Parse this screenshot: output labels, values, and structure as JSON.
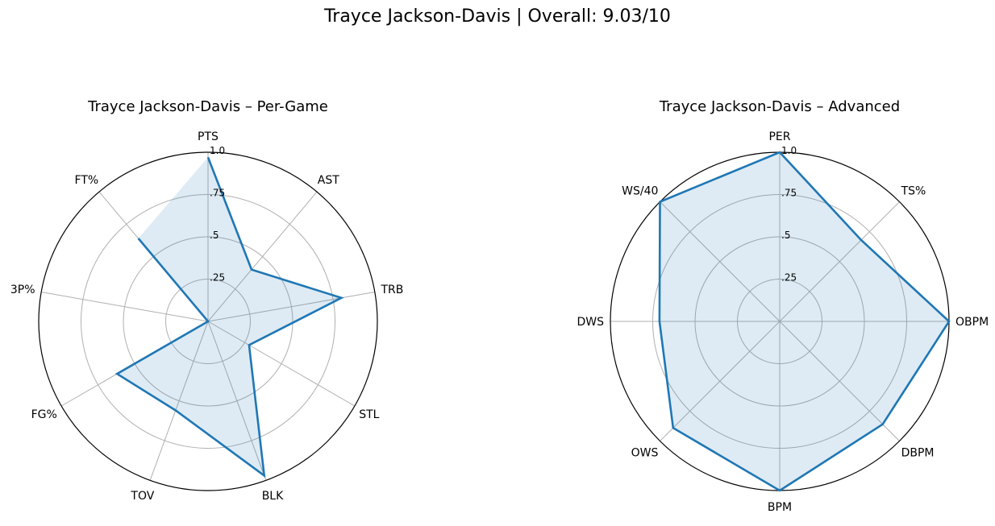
{
  "figure": {
    "title": "Trayce Jackson-Davis | Overall: 9.03/10"
  },
  "chart_data": [
    {
      "type": "radar",
      "title": "Trayce Jackson-Davis – Per-Game",
      "rlim": [
        0,
        1
      ],
      "rticks": [
        ".25",
        ".5",
        ".75",
        "1.0"
      ],
      "grid": true,
      "closed": false,
      "categories": [
        "PTS",
        "AST",
        "TRB",
        "STL",
        "BLK",
        "TOV",
        "FG%",
        "3P%",
        "FT%"
      ],
      "values": [
        0.97,
        0.4,
        0.8,
        0.28,
        0.97,
        0.56,
        0.62,
        0.0,
        0.64
      ],
      "colors": {
        "line": "#1f77b4",
        "fill": "#1f77b4"
      }
    },
    {
      "type": "radar",
      "title": "Trayce Jackson-Davis – Advanced",
      "rlim": [
        0,
        1
      ],
      "rticks": [
        ".25",
        ".5",
        ".75",
        "1.0"
      ],
      "grid": true,
      "closed": true,
      "categories": [
        "PER",
        "TS%",
        "OBPM",
        "DBPM",
        "BPM",
        "OWS",
        "DWS",
        "WS/40"
      ],
      "values": [
        1.0,
        0.68,
        1.0,
        0.86,
        1.0,
        0.89,
        0.71,
        1.0
      ],
      "colors": {
        "line": "#1f77b4",
        "fill": "#1f77b4"
      }
    }
  ]
}
